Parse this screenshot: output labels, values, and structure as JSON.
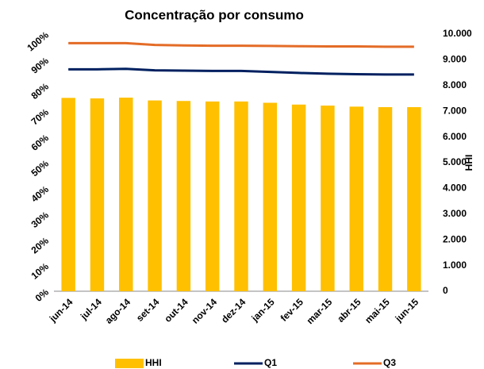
{
  "chart_data": {
    "type": "bar",
    "title": "Concentração por consumo",
    "categories": [
      "jun-14",
      "jul-14",
      "ago-14",
      "set-14",
      "out-14",
      "nov-14",
      "dez-14",
      "jan-15",
      "fev-15",
      "mar-15",
      "abr-15",
      "mai-15",
      "jun-15"
    ],
    "series": [
      {
        "name": "HHI",
        "type": "bar",
        "axis": "y2",
        "color": "#FFC000",
        "values": [
          7520,
          7500,
          7530,
          7420,
          7400,
          7380,
          7380,
          7330,
          7260,
          7220,
          7180,
          7160,
          7160
        ]
      },
      {
        "name": "Q1",
        "type": "line",
        "color": "#002060",
        "values": [
          86.3,
          86.3,
          86.5,
          85.9,
          85.8,
          85.7,
          85.7,
          85.3,
          84.9,
          84.6,
          84.4,
          84.3,
          84.3
        ]
      },
      {
        "name": "Q3",
        "type": "line",
        "color": "#E46C27",
        "values": [
          96.5,
          96.5,
          96.5,
          95.8,
          95.6,
          95.5,
          95.5,
          95.4,
          95.3,
          95.2,
          95.2,
          95.1,
          95.1
        ]
      }
    ],
    "ylim": [
      0,
      100
    ],
    "yticks": [
      {
        "value": 0,
        "label": "0%"
      },
      {
        "value": 10,
        "label": "10%"
      },
      {
        "value": 20,
        "label": "20%"
      },
      {
        "value": 30,
        "label": "30%"
      },
      {
        "value": 40,
        "label": "40%"
      },
      {
        "value": 50,
        "label": "50%"
      },
      {
        "value": 60,
        "label": "60%"
      },
      {
        "value": 70,
        "label": "70%"
      },
      {
        "value": 80,
        "label": "80%"
      },
      {
        "value": 90,
        "label": "90%"
      },
      {
        "value": 100,
        "label": "100%"
      }
    ],
    "y2lim": [
      0,
      10000
    ],
    "y2ticks": [
      0,
      {
        "value": 1000,
        "label": "1.000"
      },
      {
        "value": 2000,
        "label": "2.000"
      },
      {
        "value": 3000,
        "label": "3.000"
      },
      {
        "value": 4000,
        "label": "4.000"
      },
      {
        "value": 5000,
        "label": "5.000"
      },
      {
        "value": 6000,
        "label": "6.000"
      },
      {
        "value": 7000,
        "label": "7.000"
      },
      {
        "value": 8000,
        "label": "8.000"
      },
      {
        "value": 9000,
        "label": "9.000"
      },
      {
        "value": 10000,
        "label": "10.000"
      }
    ],
    "y2label": "HHI",
    "legend": "bottom",
    "grid": false
  }
}
